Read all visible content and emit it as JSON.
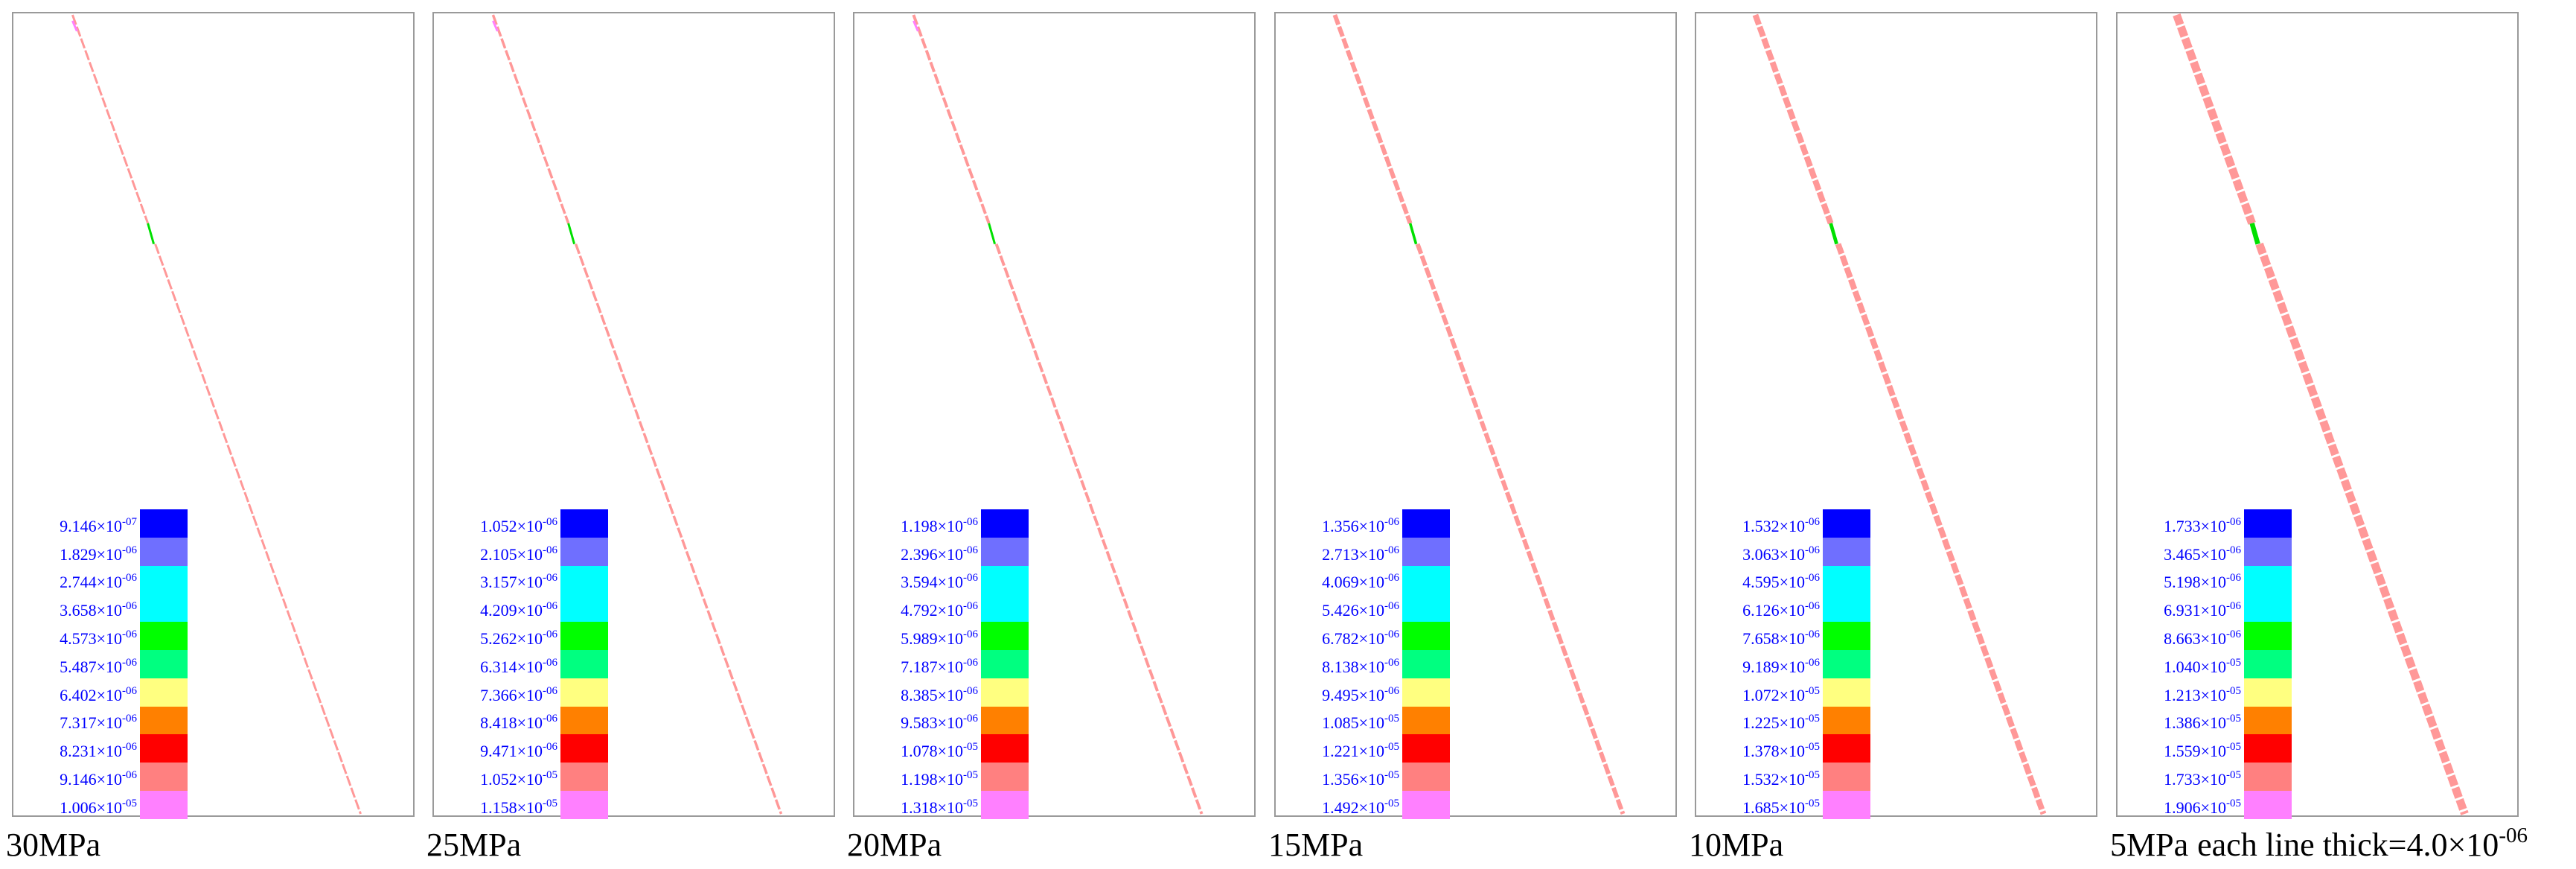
{
  "colors": [
    "#0000ff",
    "#6f6fff",
    "#00ffff",
    "#00ffff",
    "#00ff00",
    "#00ff80",
    "#ffff80",
    "#ff8000",
    "#ff0000",
    "#ff8080",
    "#ff80ff"
  ],
  "line_color": "#ff9898",
  "crack_color": "#00e000",
  "tip_color": "#ff80ff",
  "caption_extra": {
    "text": "each line thick=4.0×10",
    "exponent": "-06"
  },
  "panels": [
    {
      "caption": "30MPa",
      "legend": [
        {
          "m": "9.146×10",
          "e": "-07"
        },
        {
          "m": "1.829×10",
          "e": "-06"
        },
        {
          "m": "2.744×10",
          "e": "-06"
        },
        {
          "m": "3.658×10",
          "e": "-06"
        },
        {
          "m": "4.573×10",
          "e": "-06"
        },
        {
          "m": "5.487×10",
          "e": "-06"
        },
        {
          "m": "6.402×10",
          "e": "-06"
        },
        {
          "m": "7.317×10",
          "e": "-06"
        },
        {
          "m": "8.231×10",
          "e": "-06"
        },
        {
          "m": "9.146×10",
          "e": "-06"
        },
        {
          "m": "1.006×10",
          "e": "-05"
        }
      ]
    },
    {
      "caption": "25MPa",
      "legend": [
        {
          "m": "1.052×10",
          "e": "-06"
        },
        {
          "m": "2.105×10",
          "e": "-06"
        },
        {
          "m": "3.157×10",
          "e": "-06"
        },
        {
          "m": "4.209×10",
          "e": "-06"
        },
        {
          "m": "5.262×10",
          "e": "-06"
        },
        {
          "m": "6.314×10",
          "e": "-06"
        },
        {
          "m": "7.366×10",
          "e": "-06"
        },
        {
          "m": "8.418×10",
          "e": "-06"
        },
        {
          "m": "9.471×10",
          "e": "-06"
        },
        {
          "m": "1.052×10",
          "e": "-05"
        },
        {
          "m": "1.158×10",
          "e": "-05"
        }
      ]
    },
    {
      "caption": "20MPa",
      "legend": [
        {
          "m": "1.198×10",
          "e": "-06"
        },
        {
          "m": "2.396×10",
          "e": "-06"
        },
        {
          "m": "3.594×10",
          "e": "-06"
        },
        {
          "m": "4.792×10",
          "e": "-06"
        },
        {
          "m": "5.989×10",
          "e": "-06"
        },
        {
          "m": "7.187×10",
          "e": "-06"
        },
        {
          "m": "8.385×10",
          "e": "-06"
        },
        {
          "m": "9.583×10",
          "e": "-06"
        },
        {
          "m": "1.078×10",
          "e": "-05"
        },
        {
          "m": "1.198×10",
          "e": "-05"
        },
        {
          "m": "1.318×10",
          "e": "-05"
        }
      ]
    },
    {
      "caption": "15MPa",
      "legend": [
        {
          "m": "1.356×10",
          "e": "-06"
        },
        {
          "m": "2.713×10",
          "e": "-06"
        },
        {
          "m": "4.069×10",
          "e": "-06"
        },
        {
          "m": "5.426×10",
          "e": "-06"
        },
        {
          "m": "6.782×10",
          "e": "-06"
        },
        {
          "m": "8.138×10",
          "e": "-06"
        },
        {
          "m": "9.495×10",
          "e": "-06"
        },
        {
          "m": "1.085×10",
          "e": "-05"
        },
        {
          "m": "1.221×10",
          "e": "-05"
        },
        {
          "m": "1.356×10",
          "e": "-05"
        },
        {
          "m": "1.492×10",
          "e": "-05"
        }
      ]
    },
    {
      "caption": "10MPa",
      "legend": [
        {
          "m": "1.532×10",
          "e": "-06"
        },
        {
          "m": "3.063×10",
          "e": "-06"
        },
        {
          "m": "4.595×10",
          "e": "-06"
        },
        {
          "m": "6.126×10",
          "e": "-06"
        },
        {
          "m": "7.658×10",
          "e": "-06"
        },
        {
          "m": "9.189×10",
          "e": "-06"
        },
        {
          "m": "1.072×10",
          "e": "-05"
        },
        {
          "m": "1.225×10",
          "e": "-05"
        },
        {
          "m": "1.378×10",
          "e": "-05"
        },
        {
          "m": "1.532×10",
          "e": "-05"
        },
        {
          "m": "1.685×10",
          "e": "-05"
        }
      ]
    },
    {
      "caption": "5MPa",
      "legend": [
        {
          "m": "1.733×10",
          "e": "-06"
        },
        {
          "m": "3.465×10",
          "e": "-06"
        },
        {
          "m": "5.198×10",
          "e": "-06"
        },
        {
          "m": "6.931×10",
          "e": "-06"
        },
        {
          "m": "8.663×10",
          "e": "-06"
        },
        {
          "m": "1.040×10",
          "e": "-05"
        },
        {
          "m": "1.213×10",
          "e": "-05"
        },
        {
          "m": "1.386×10",
          "e": "-05"
        },
        {
          "m": "1.559×10",
          "e": "-05"
        },
        {
          "m": "1.733×10",
          "e": "-05"
        },
        {
          "m": "1.906×10",
          "e": "-05"
        }
      ]
    }
  ]
}
